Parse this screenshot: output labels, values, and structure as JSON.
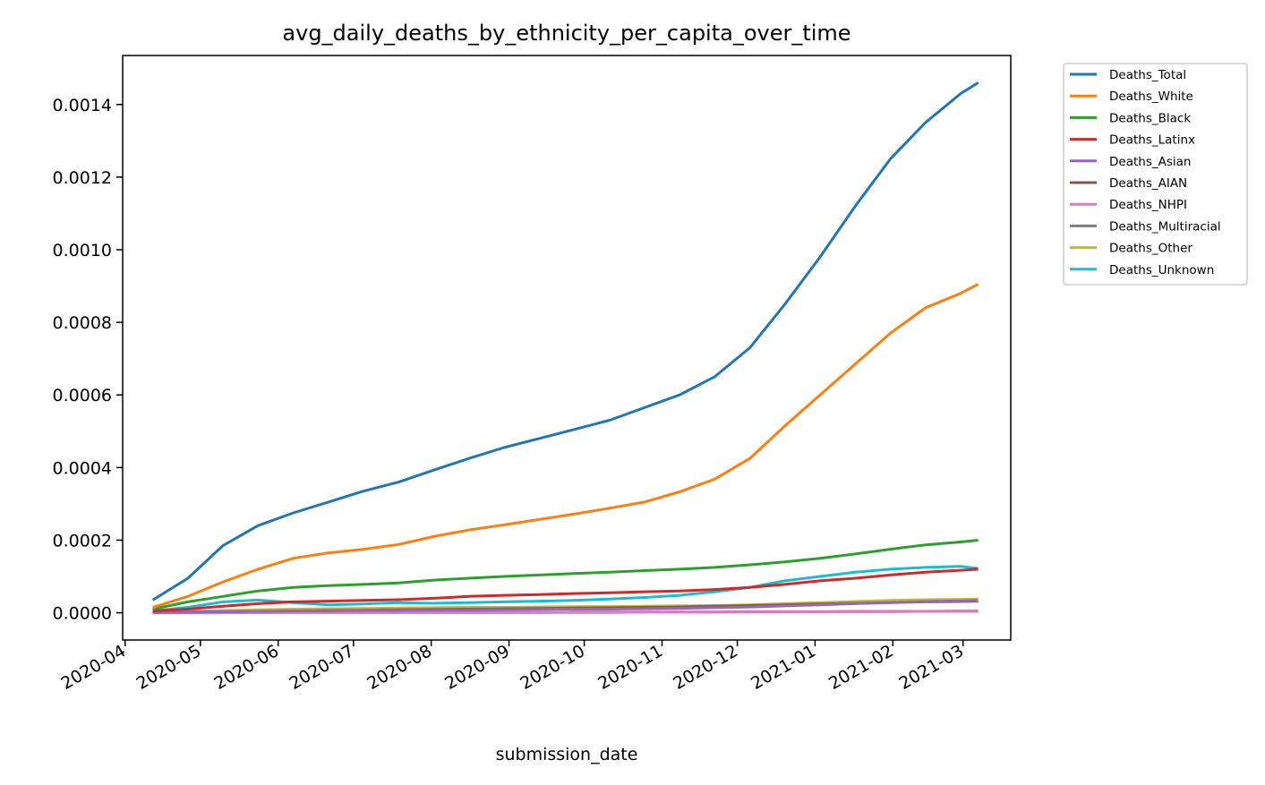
{
  "chart_data": {
    "type": "line",
    "title": "avg_daily_deaths_by_ethnicity_per_capita_over_time",
    "xlabel": "submission_date",
    "ylabel": "",
    "x_type": "date",
    "xlim": [
      "2020-03-31",
      "2021-03-20"
    ],
    "ylim": [
      -7.5e-05,
      0.001535
    ],
    "xticks": [
      "2020-04-01",
      "2020-05-01",
      "2020-06-01",
      "2020-07-01",
      "2020-08-01",
      "2020-09-01",
      "2020-10-01",
      "2020-11-01",
      "2020-12-01",
      "2021-01-01",
      "2021-02-01",
      "2021-03-01"
    ],
    "xtick_labels": [
      "2020-04",
      "2020-05",
      "2020-06",
      "2020-07",
      "2020-08",
      "2020-09",
      "2020-10",
      "2020-11",
      "2020-12",
      "2021-01",
      "2021-02",
      "2021-03"
    ],
    "yticks": [
      0,
      0.0002,
      0.0004,
      0.0006,
      0.0008,
      0.001,
      0.0012,
      0.0014
    ],
    "ytick_labels": [
      "0.0000",
      "0.0002",
      "0.0004",
      "0.0006",
      "0.0008",
      "0.0010",
      "0.0012",
      "0.0014"
    ],
    "grid": false,
    "legend_position": "outside-right",
    "x": [
      "2020-04-12",
      "2020-04-26",
      "2020-05-10",
      "2020-05-24",
      "2020-06-07",
      "2020-06-21",
      "2020-07-05",
      "2020-07-19",
      "2020-08-02",
      "2020-08-16",
      "2020-08-30",
      "2020-09-13",
      "2020-09-27",
      "2020-10-11",
      "2020-10-25",
      "2020-11-08",
      "2020-11-22",
      "2020-12-06",
      "2020-12-20",
      "2021-01-03",
      "2021-01-17",
      "2021-01-31",
      "2021-02-14",
      "2021-02-28",
      "2021-03-07"
    ],
    "series": [
      {
        "name": "Deaths_Total",
        "color": "#1f77b4",
        "values": [
          3.5e-05,
          9.5e-05,
          0.000185,
          0.00024,
          0.000275,
          0.000305,
          0.000335,
          0.00036,
          0.000393,
          0.000425,
          0.000455,
          0.00048,
          0.000505,
          0.00053,
          0.000565,
          0.0006,
          0.00065,
          0.00073,
          0.00085,
          0.00098,
          0.00112,
          0.00125,
          0.00135,
          0.00143,
          0.00146
        ]
      },
      {
        "name": "Deaths_White",
        "color": "#ff7f0e",
        "values": [
          1.5e-05,
          4.5e-05,
          8.5e-05,
          0.00012,
          0.00015,
          0.000165,
          0.000175,
          0.000188,
          0.00021,
          0.000228,
          0.000242,
          0.000257,
          0.000272,
          0.000288,
          0.000305,
          0.000333,
          0.000368,
          0.000425,
          0.000515,
          0.0006,
          0.000685,
          0.00077,
          0.00084,
          0.00088,
          0.000905
        ]
      },
      {
        "name": "Deaths_Black",
        "color": "#2ca02c",
        "values": [
          1e-05,
          3e-05,
          4.5e-05,
          6e-05,
          7e-05,
          7.5e-05,
          7.8e-05,
          8.2e-05,
          9e-05,
          9.5e-05,
          0.0001,
          0.000104,
          0.000108,
          0.000112,
          0.000116,
          0.00012,
          0.000125,
          0.000132,
          0.00014,
          0.00015,
          0.000162,
          0.000175,
          0.000187,
          0.000195,
          0.0002
        ]
      },
      {
        "name": "Deaths_Latinx",
        "color": "#d62728",
        "values": [
          5e-06,
          1e-05,
          1.8e-05,
          2.5e-05,
          3e-05,
          3.2e-05,
          3.4e-05,
          3.6e-05,
          4e-05,
          4.5e-05,
          4.8e-05,
          5e-05,
          5.3e-05,
          5.5e-05,
          5.8e-05,
          6e-05,
          6.4e-05,
          7e-05,
          7.8e-05,
          8.8e-05,
          9.5e-05,
          0.000104,
          0.000112,
          0.000117,
          0.00012
        ]
      },
      {
        "name": "Deaths_Asian",
        "color": "#9467bd",
        "values": [
          1e-06,
          2e-06,
          3e-06,
          4e-06,
          5e-06,
          5e-06,
          6e-06,
          6e-06,
          7e-06,
          7e-06,
          8e-06,
          9e-06,
          1e-05,
          1e-05,
          1.1e-05,
          1.2e-05,
          1.4e-05,
          1.6e-05,
          1.9e-05,
          2.2e-05,
          2.5e-05,
          2.8e-05,
          3.1e-05,
          3.3e-05,
          3.4e-05
        ]
      },
      {
        "name": "Deaths_AIAN",
        "color": "#8c564b",
        "values": [
          1e-06,
          2e-06,
          3e-06,
          4e-06,
          5e-06,
          6e-06,
          7e-06,
          8e-06,
          9e-06,
          1e-05,
          1.1e-05,
          1.2e-05,
          1.3e-05,
          1.4e-05,
          1.5e-05,
          1.6e-05,
          1.8e-05,
          2e-05,
          2.2e-05,
          2.4e-05,
          2.6e-05,
          2.8e-05,
          3e-05,
          3.1e-05,
          3.2e-05
        ]
      },
      {
        "name": "Deaths_NHPI",
        "color": "#e377c2",
        "values": [
          0,
          0,
          0,
          0,
          1e-06,
          1e-06,
          1e-06,
          1e-06,
          1e-06,
          1e-06,
          1e-06,
          1e-06,
          1e-06,
          1e-06,
          2e-06,
          2e-06,
          2e-06,
          2e-06,
          3e-06,
          3e-06,
          3e-06,
          3e-06,
          4e-06,
          4e-06,
          4e-06
        ]
      },
      {
        "name": "Deaths_Multiracial",
        "color": "#7f7f7f",
        "values": [
          0,
          0,
          0,
          1e-06,
          1e-06,
          1e-06,
          1e-06,
          1e-06,
          1e-06,
          1e-06,
          1e-06,
          1e-06,
          2e-06,
          2e-06,
          2e-06,
          2e-06,
          2e-06,
          3e-06,
          3e-06,
          3e-06,
          4e-06,
          4e-06,
          4e-06,
          5e-06,
          5e-06
        ]
      },
      {
        "name": "Deaths_Other",
        "color": "#bcbd22",
        "values": [
          2e-06,
          4e-06,
          6e-06,
          8e-06,
          1e-05,
          1.1e-05,
          1.2e-05,
          1.3e-05,
          1.4e-05,
          1.5e-05,
          1.5e-05,
          1.6e-05,
          1.7e-05,
          1.7e-05,
          1.8e-05,
          1.9e-05,
          2e-05,
          2.2e-05,
          2.5e-05,
          2.8e-05,
          3.1e-05,
          3.4e-05,
          3.6e-05,
          3.7e-05,
          3.8e-05
        ]
      },
      {
        "name": "Deaths_Unknown",
        "color": "#17becf",
        "values": [
          5e-06,
          1.5e-05,
          3e-05,
          3.5e-05,
          2.8e-05,
          2.2e-05,
          2.4e-05,
          2.8e-05,
          2.6e-05,
          2.8e-05,
          3e-05,
          3.2e-05,
          3.4e-05,
          3.8e-05,
          4.2e-05,
          4.8e-05,
          5.8e-05,
          7e-05,
          8.8e-05,
          0.0001,
          0.000112,
          0.00012,
          0.000125,
          0.000128,
          0.000122
        ]
      }
    ]
  }
}
